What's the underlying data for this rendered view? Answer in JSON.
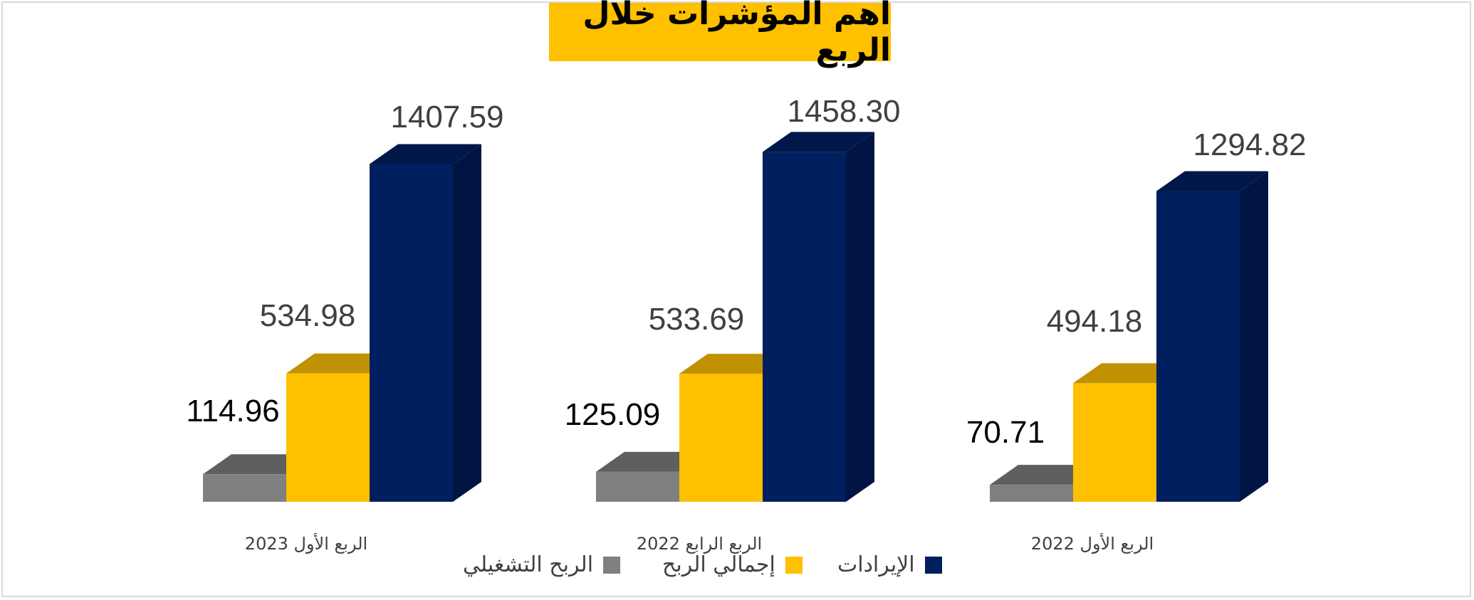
{
  "chart_data": {
    "type": "bar",
    "title": "أهم المؤشرات خلال الربع",
    "categories": [
      "الربع الأول 2023",
      "الربع الرابع 2022",
      "الربع الأول 2022"
    ],
    "series": [
      {
        "name": "الربح التشغيلي",
        "values": [
          114.96,
          125.09,
          70.71
        ],
        "labels": [
          "114.96",
          "125.09",
          "70.71"
        ],
        "color": "#808080",
        "top_color": "#5f5f5f",
        "side_color": "#666666",
        "label_color": "#000000"
      },
      {
        "name": "إجمالي الربح",
        "values": [
          534.98,
          533.69,
          494.18
        ],
        "labels": [
          "534.98",
          "533.69",
          "494.18"
        ],
        "color": "#ffc000",
        "top_color": "#c09100",
        "side_color": "#bf9000",
        "label_color": "#404040"
      },
      {
        "name": "الإيرادات",
        "values": [
          1407.59,
          1458.3,
          1294.82
        ],
        "labels": [
          "1407.59",
          "1458.30",
          "1294.82"
        ],
        "color": "#001f5f",
        "top_color": "#00174a",
        "side_color": "#001544",
        "label_color": "#404040"
      }
    ],
    "legend_position": "bottom",
    "grid": false
  }
}
